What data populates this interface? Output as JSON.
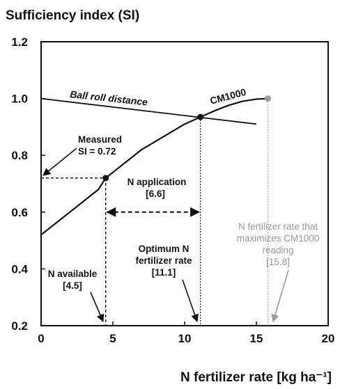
{
  "chart_data": {
    "type": "line",
    "ylabel": "Sufficiency index (SI)",
    "xlabel": "N fertilizer rate [kg ha⁻¹]",
    "xlim": [
      0,
      20
    ],
    "ylim": [
      0.2,
      1.2
    ],
    "x_ticks": [
      "0",
      "5",
      "10",
      "15",
      "20"
    ],
    "y_ticks": [
      "0.2",
      "0.4",
      "0.6",
      "0.8",
      "1.0",
      "1.2"
    ],
    "grid": false,
    "series": [
      {
        "name": "CM1000",
        "x": [
          0,
          1,
          2,
          3,
          4,
          4.5,
          5,
          6,
          7,
          8,
          9,
          10,
          11.1,
          12,
          13,
          14,
          15,
          15.8
        ],
        "y": [
          0.52,
          0.56,
          0.6,
          0.64,
          0.68,
          0.72,
          0.74,
          0.78,
          0.82,
          0.85,
          0.88,
          0.91,
          0.935,
          0.955,
          0.975,
          0.99,
          0.998,
          1.0
        ]
      },
      {
        "name": "Ball roll distance",
        "x": [
          0,
          15
        ],
        "y": [
          1.0,
          0.91
        ]
      }
    ],
    "points": [
      {
        "x": 4.5,
        "y": 0.72
      },
      {
        "x": 11.1,
        "y": 0.935
      },
      {
        "x": 15.8,
        "y": 1.0
      }
    ],
    "annotations": {
      "measured_1": "Measured",
      "measured_2": "SI = 0.72",
      "n_application_1": "N application",
      "n_application_2": "[6.6]",
      "optimum_1": "Optimum N",
      "optimum_2": "fertilizer rate",
      "optimum_3": "[11.1]",
      "available_1": "N available",
      "available_2": "[4.5]",
      "max_1": "N fertilizer rate that",
      "max_2": "maximizes CM1000",
      "max_3": "reading",
      "max_4": "[15.8]"
    },
    "colors": {
      "line": "#111111",
      "grey": "#9a9a9a"
    }
  }
}
